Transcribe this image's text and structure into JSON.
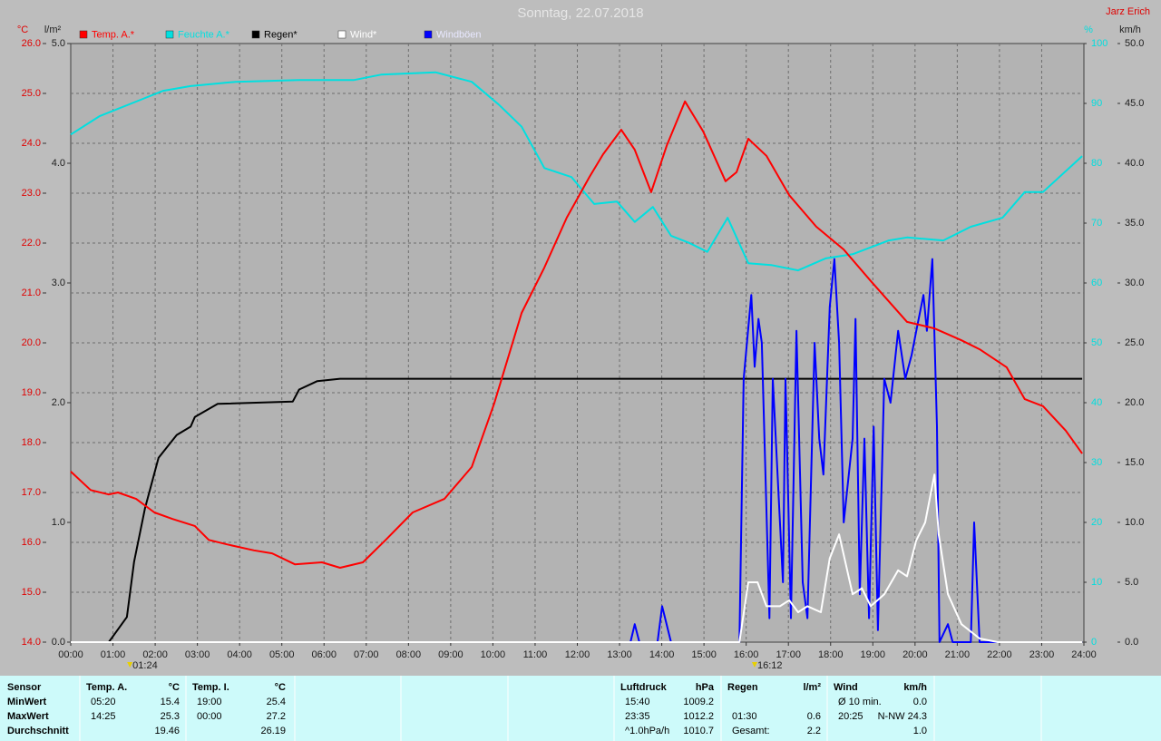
{
  "chart_data": {
    "type": "line",
    "title": "Sonntag, 22.07.2018",
    "author": "Jarz Erich",
    "xlim": [
      0,
      24
    ],
    "xticks": [
      {
        "value": 0,
        "label": "00:00"
      },
      {
        "value": 1,
        "label": "01:00"
      },
      {
        "value": 2,
        "label": "02:00"
      },
      {
        "value": 3,
        "label": "03:00"
      },
      {
        "value": 4,
        "label": "04:00"
      },
      {
        "value": 5,
        "label": "05:00"
      },
      {
        "value": 6,
        "label": "06:00"
      },
      {
        "value": 7,
        "label": "07:00"
      },
      {
        "value": 8,
        "label": "08:00"
      },
      {
        "value": 9,
        "label": "09:00"
      },
      {
        "value": 10,
        "label": "10:00"
      },
      {
        "value": 11,
        "label": "11:00"
      },
      {
        "value": 12,
        "label": "12:00"
      },
      {
        "value": 13,
        "label": "13:00"
      },
      {
        "value": 14,
        "label": "14:00"
      },
      {
        "value": 15,
        "label": "15:00"
      },
      {
        "value": 16,
        "label": "16:00"
      },
      {
        "value": 17,
        "label": "17:00"
      },
      {
        "value": 18,
        "label": "18:00"
      },
      {
        "value": 19,
        "label": "19:00"
      },
      {
        "value": 20,
        "label": "20:00"
      },
      {
        "value": 21,
        "label": "21:00"
      },
      {
        "value": 22,
        "label": "22:00"
      },
      {
        "value": 23,
        "label": "23:00"
      },
      {
        "value": 24,
        "label": "24:00"
      }
    ],
    "ylabel": "°C",
    "ylim": [
      14,
      26
    ],
    "yticks": [
      {
        "value": 14,
        "label": "14.0"
      },
      {
        "value": 15,
        "label": "15.0"
      },
      {
        "value": 16,
        "label": "16.0"
      },
      {
        "value": 17,
        "label": "17.0"
      },
      {
        "value": 18,
        "label": "18.0"
      },
      {
        "value": 19,
        "label": "19.0"
      },
      {
        "value": 20,
        "label": "20.0"
      },
      {
        "value": 21,
        "label": "21.0"
      },
      {
        "value": 22,
        "label": "22.0"
      },
      {
        "value": 23,
        "label": "23.0"
      },
      {
        "value": 24,
        "label": "24.0"
      },
      {
        "value": 25,
        "label": "25.0"
      },
      {
        "value": 26,
        "label": "26.0"
      }
    ],
    "y2label": "l/m²",
    "y2lim": [
      0,
      5
    ],
    "y2ticks": [
      {
        "value": 0,
        "label": "0.0"
      },
      {
        "value": 1,
        "label": "1.0"
      },
      {
        "value": 2,
        "label": "2.0"
      },
      {
        "value": 3,
        "label": "3.0"
      },
      {
        "value": 4,
        "label": "4.0"
      },
      {
        "value": 5,
        "label": "5.0"
      }
    ],
    "y3label": "%",
    "y3lim": [
      0,
      100
    ],
    "y3ticks": [
      0,
      10,
      20,
      30,
      40,
      50,
      60,
      70,
      80,
      90,
      100
    ],
    "y4label": "km/h",
    "y4lim": [
      0,
      50
    ],
    "y4ticks": [
      {
        "value": 0,
        "label": "0.0"
      },
      {
        "value": 5,
        "label": "5.0"
      },
      {
        "value": 10,
        "label": "10.0"
      },
      {
        "value": 15,
        "label": "15.0"
      },
      {
        "value": 20,
        "label": "20.0"
      },
      {
        "value": 25,
        "label": "25.0"
      },
      {
        "value": 30,
        "label": "30.0"
      },
      {
        "value": 35,
        "label": "35.0"
      },
      {
        "value": 40,
        "label": "40.0"
      },
      {
        "value": 45,
        "label": "45.0"
      },
      {
        "value": 50,
        "label": "50.0"
      }
    ],
    "grid": true,
    "series": [
      {
        "name": "Temp. A.*",
        "color": "#ff0000",
        "axis": "y",
        "x": [
          0,
          0.47,
          0.9,
          1.12,
          1.55,
          1.98,
          2.41,
          2.94,
          3.27,
          3.7,
          4.34,
          4.77,
          5.31,
          5.95,
          6.38,
          6.92,
          7.46,
          8.1,
          8.85,
          9.5,
          10.03,
          10.68,
          11.22,
          11.75,
          12.29,
          12.61,
          13.04,
          13.36,
          13.75,
          14.12,
          14.55,
          14.98,
          15.51,
          15.77,
          16.05,
          16.48,
          17.02,
          17.66,
          18.31,
          18.95,
          19.81,
          20.46,
          21.1,
          21.53,
          22.17,
          22.6,
          23.03,
          23.57,
          23.96
        ],
        "values": [
          17.42,
          17.05,
          16.96,
          17.0,
          16.87,
          16.6,
          16.47,
          16.33,
          16.05,
          15.96,
          15.84,
          15.78,
          15.56,
          15.6,
          15.49,
          15.6,
          16.05,
          16.6,
          16.87,
          17.51,
          18.78,
          20.6,
          21.51,
          22.51,
          23.33,
          23.78,
          24.27,
          23.87,
          23.02,
          23.96,
          24.84,
          24.24,
          23.24,
          23.42,
          24.09,
          23.75,
          22.96,
          22.33,
          21.87,
          21.24,
          20.42,
          20.29,
          20.05,
          19.87,
          19.51,
          18.87,
          18.73,
          18.24,
          17.78
        ]
      },
      {
        "name": "Feuchte A.*",
        "color": "#00e0e0",
        "axis": "y3",
        "x": [
          0,
          0.69,
          1.55,
          2.19,
          2.84,
          3.91,
          5.41,
          6.7,
          7.35,
          8.64,
          9.5,
          10.14,
          10.68,
          11.22,
          11.86,
          12.4,
          12.94,
          13.36,
          13.79,
          14.22,
          14.65,
          15.08,
          15.56,
          16.05,
          16.59,
          17.23,
          17.88,
          18.52,
          19.38,
          19.81,
          20.67,
          21.32,
          22.07,
          22.6,
          23.03,
          23.96
        ],
        "values": [
          84.8,
          87.9,
          90.3,
          92.1,
          92.9,
          93.6,
          93.9,
          93.9,
          94.8,
          95.2,
          93.6,
          89.8,
          86.1,
          79.2,
          77.7,
          73.2,
          73.6,
          70.2,
          72.7,
          67.9,
          66.7,
          65.2,
          70.9,
          63.3,
          63.0,
          62.1,
          64.1,
          64.8,
          67.1,
          67.6,
          67.1,
          69.4,
          70.9,
          75.2,
          75.2,
          81.2
        ]
      },
      {
        "name": "Regen*",
        "color": "#000000",
        "axis": "y2",
        "x": [
          0,
          0.9,
          1.33,
          1.5,
          1.76,
          2.08,
          2.51,
          2.84,
          2.94,
          3.48,
          5.26,
          5.41,
          5.84,
          6.38,
          23.96
        ],
        "values": [
          0,
          0,
          0.21,
          0.67,
          1.12,
          1.54,
          1.73,
          1.8,
          1.88,
          1.99,
          2.01,
          2.11,
          2.18,
          2.2,
          2.2
        ]
      },
      {
        "name": "Wind*",
        "color": "#ffffff",
        "axis": "y4",
        "x": [
          0,
          15.84,
          16.05,
          16.27,
          16.48,
          16.8,
          17.02,
          17.23,
          17.45,
          17.77,
          17.98,
          18.2,
          18.52,
          18.74,
          18.95,
          19.27,
          19.6,
          19.81,
          20.03,
          20.24,
          20.46,
          20.56,
          20.78,
          21.1,
          21.53,
          21.96,
          23.96
        ],
        "values": [
          0,
          0,
          5,
          5,
          3,
          3,
          3.5,
          2.5,
          3,
          2.5,
          7,
          9,
          4,
          4.5,
          3,
          4,
          6,
          5.5,
          8.5,
          10,
          14,
          9,
          4,
          1.5,
          0.3,
          0,
          0
        ]
      },
      {
        "name": "Windböen",
        "color": "#0000ff",
        "axis": "y4",
        "x": [
          0,
          13.26,
          13.36,
          13.47,
          13.9,
          14.01,
          14.22,
          15.84,
          15.94,
          16.12,
          16.2,
          16.29,
          16.37,
          16.55,
          16.63,
          16.8,
          16.87,
          16.93,
          17.06,
          17.19,
          17.34,
          17.45,
          17.62,
          17.73,
          17.83,
          17.98,
          18.09,
          18.2,
          18.31,
          18.52,
          18.59,
          18.69,
          18.8,
          18.91,
          19.02,
          19.12,
          19.27,
          19.42,
          19.6,
          19.77,
          19.92,
          20.03,
          20.2,
          20.28,
          20.41,
          20.52,
          20.58,
          20.78,
          20.89,
          21.32,
          21.4,
          21.53,
          23.96
        ],
        "values": [
          0,
          0,
          1.5,
          0,
          0,
          3,
          0,
          0,
          22,
          29,
          23,
          27,
          25,
          2,
          22,
          10,
          5,
          22,
          2,
          26,
          5,
          2,
          25,
          17,
          14,
          28,
          32,
          25,
          10,
          17,
          27,
          4,
          17,
          2,
          18,
          1,
          22,
          20,
          26,
          22,
          24,
          26,
          29,
          26,
          32,
          18,
          0,
          1.5,
          0,
          0,
          10,
          0,
          0
        ]
      }
    ],
    "markers": [
      {
        "label": "01:24",
        "x": 1.4
      },
      {
        "label": "16:12",
        "x": 16.2
      }
    ]
  },
  "stats": {
    "row_labels": [
      "Sensor",
      "MinWert",
      "MaxWert",
      "Durchschnitt"
    ],
    "groups": [
      {
        "title": "Temp. A.",
        "unit": "°C",
        "rows": [
          {
            "time": "05:20",
            "value": "15.4"
          },
          {
            "time": "14:25",
            "value": "25.3"
          },
          {
            "value": "19.46"
          }
        ]
      },
      {
        "title": "Temp. I.",
        "unit": "°C",
        "rows": [
          {
            "time": "19:00",
            "value": "25.4"
          },
          {
            "time": "00:00",
            "value": "27.2"
          },
          {
            "value": "26.19"
          }
        ]
      },
      {
        "title": "Luftdruck",
        "unit": "hPa",
        "rows": [
          {
            "time": "15:40",
            "value": "1009.2"
          },
          {
            "time": "23:35",
            "value": "1012.2"
          },
          {
            "time": "^1.0hPa/h",
            "value": "1010.7"
          }
        ]
      },
      {
        "title": "Regen",
        "unit": "l/m²",
        "rows": [
          null,
          {
            "time": "01:30",
            "value": "0.6"
          },
          {
            "time": "Gesamt:",
            "value": "2.2"
          }
        ]
      },
      {
        "title": "Wind",
        "unit": "km/h",
        "rows": [
          {
            "time": "Ø 10 min.",
            "value": "0.0"
          },
          {
            "time": "20:25",
            "value": "N-NW 24.3"
          },
          {
            "value": "1.0"
          }
        ]
      }
    ]
  }
}
